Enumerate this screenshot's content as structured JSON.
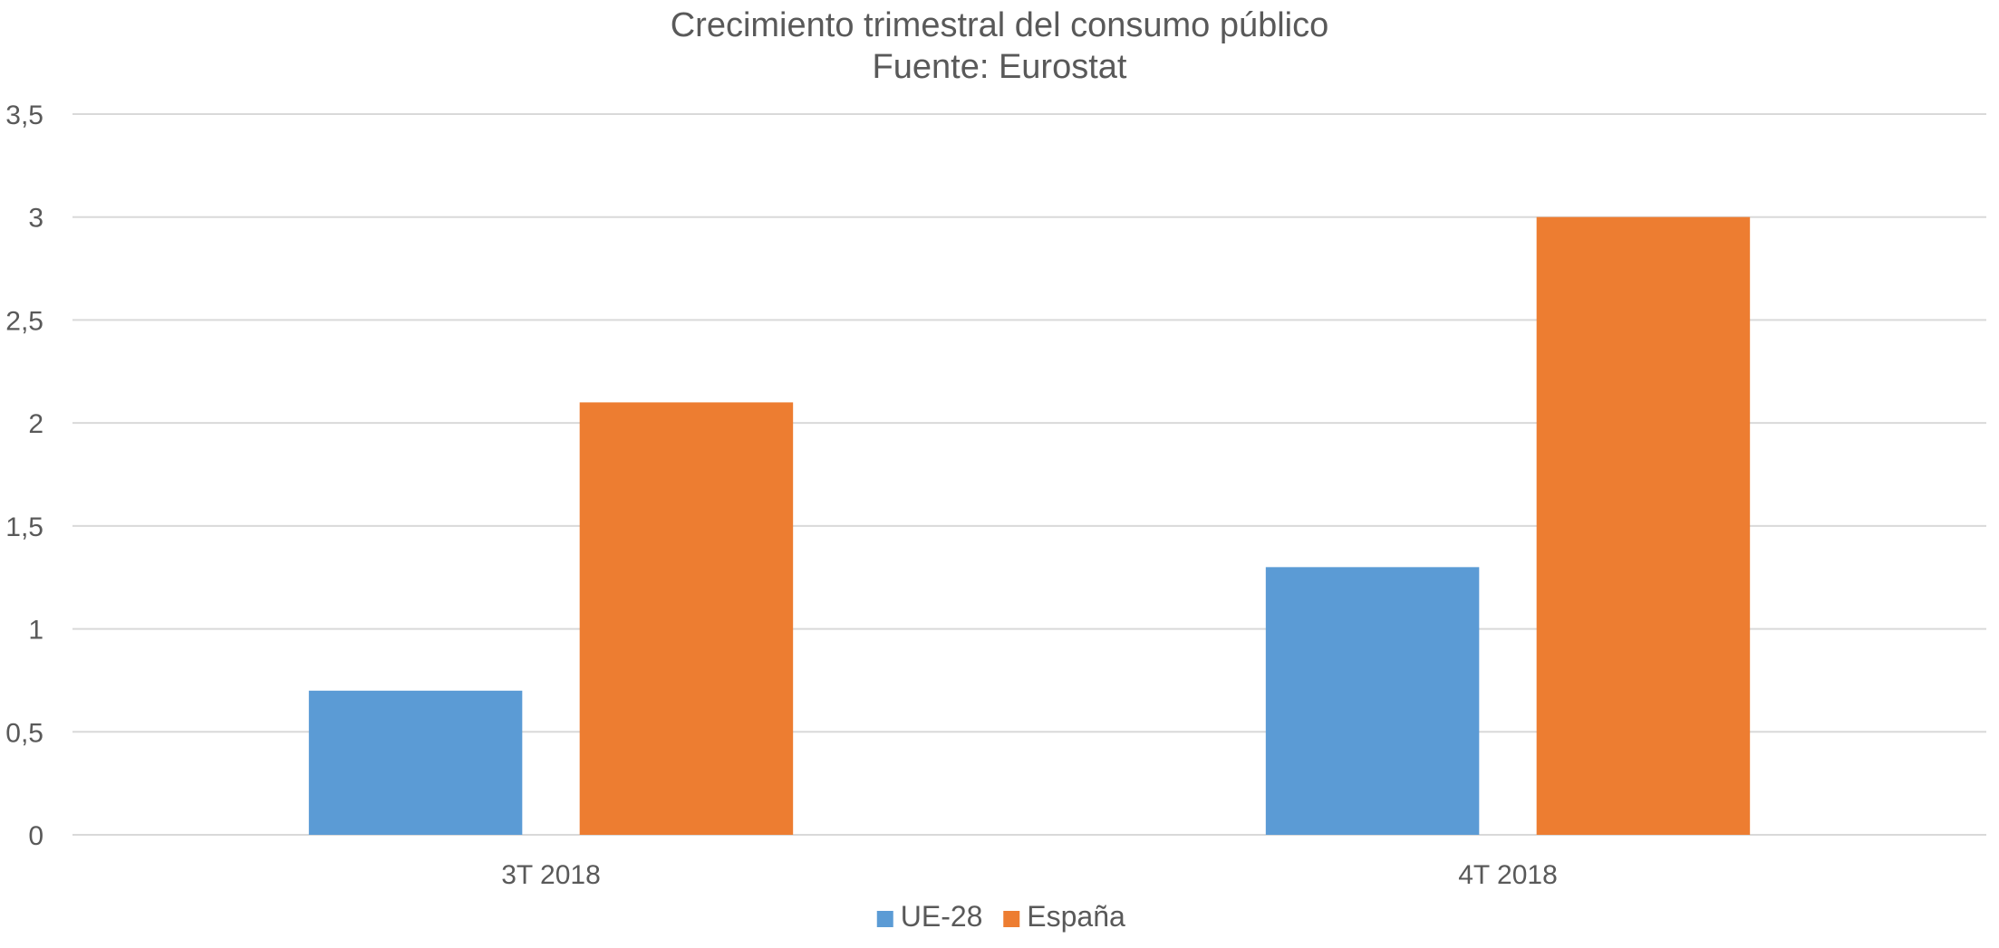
{
  "chart_data": {
    "type": "bar",
    "title": "Crecimiento trimestral del consumo público",
    "subtitle": "Fuente: Eurostat",
    "xlabel": "",
    "ylabel": "",
    "categories": [
      "3T 2018",
      "4T 2018"
    ],
    "series": [
      {
        "name": "UE-28",
        "values": [
          0.7,
          1.3
        ],
        "color": "#5B9BD5"
      },
      {
        "name": "España",
        "values": [
          2.1,
          3.0
        ],
        "color": "#ED7D31"
      }
    ],
    "ylim": [
      0,
      3.5
    ],
    "yticks": [
      {
        "value": 0,
        "label": "0"
      },
      {
        "value": 0.5,
        "label": "0,5"
      },
      {
        "value": 1,
        "label": "1"
      },
      {
        "value": 1.5,
        "label": "1,5"
      },
      {
        "value": 2,
        "label": "2"
      },
      {
        "value": 2.5,
        "label": "2,5"
      },
      {
        "value": 3,
        "label": "3"
      },
      {
        "value": 3.5,
        "label": "3,5"
      }
    ],
    "grid": true,
    "legend_position": "bottom",
    "colors": {
      "grid": "#D9D9D9",
      "text": "#595959"
    }
  }
}
